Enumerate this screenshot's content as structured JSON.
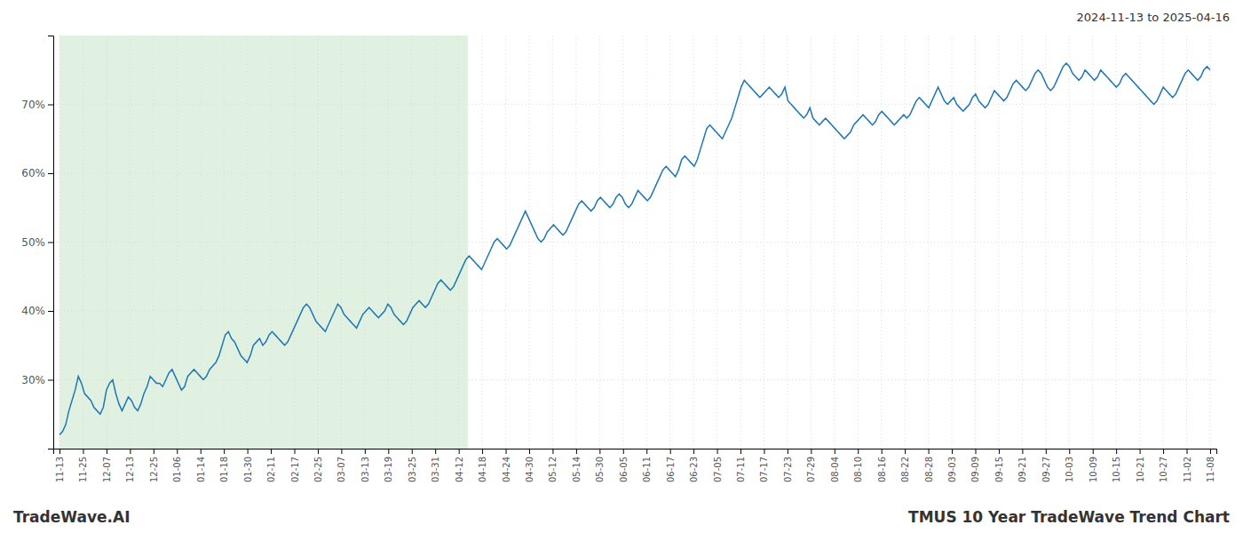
{
  "chart_data": {
    "type": "line",
    "title": "TMUS 10 Year TradeWave Trend Chart",
    "subtitle": "2024-11-13 to 2025-04-16",
    "annotations": [
      "TradeWave.AI"
    ],
    "color": "#1f77b4",
    "grid": true,
    "xlim": [
      -2,
      370
    ],
    "xticks": [
      {
        "value": 0,
        "label": "11-13"
      },
      {
        "value": 7.510204,
        "label": "11-25"
      },
      {
        "value": 15.020408,
        "label": "12-07"
      },
      {
        "value": 22.530612,
        "label": "12-13"
      },
      {
        "value": 30.040816,
        "label": "12-25"
      },
      {
        "value": 37.55102,
        "label": "01-06"
      },
      {
        "value": 45.061224,
        "label": "01-14"
      },
      {
        "value": 52.571429,
        "label": "01-18"
      },
      {
        "value": 60.081633,
        "label": "01-30"
      },
      {
        "value": 67.591837,
        "label": "02-11"
      },
      {
        "value": 75.102041,
        "label": "02-17"
      },
      {
        "value": 82.612245,
        "label": "02-25"
      },
      {
        "value": 90.122449,
        "label": "03-07"
      },
      {
        "value": 97.632653,
        "label": "03-13"
      },
      {
        "value": 105.142857,
        "label": "03-19"
      },
      {
        "value": 112.653061,
        "label": "03-25"
      },
      {
        "value": 120.163265,
        "label": "03-31"
      },
      {
        "value": 127.673469,
        "label": "04-12"
      },
      {
        "value": 135.183673,
        "label": "04-18"
      },
      {
        "value": 142.693878,
        "label": "04-24"
      },
      {
        "value": 150.204082,
        "label": "04-30"
      },
      {
        "value": 157.714286,
        "label": "05-12"
      },
      {
        "value": 165.22449,
        "label": "05-14"
      },
      {
        "value": 172.734694,
        "label": "05-30"
      },
      {
        "value": 180.244898,
        "label": "06-05"
      },
      {
        "value": 187.755102,
        "label": "06-11"
      },
      {
        "value": 195.265306,
        "label": "06-17"
      },
      {
        "value": 202.77551,
        "label": "06-23"
      },
      {
        "value": 210.285714,
        "label": "07-05"
      },
      {
        "value": 217.795918,
        "label": "07-11"
      },
      {
        "value": 225.306122,
        "label": "07-17"
      },
      {
        "value": 232.816327,
        "label": "07-23"
      },
      {
        "value": 240.326531,
        "label": "07-29"
      },
      {
        "value": 247.836735,
        "label": "08-04"
      },
      {
        "value": 255.346939,
        "label": "08-10"
      },
      {
        "value": 262.857143,
        "label": "08-16"
      },
      {
        "value": 270.367347,
        "label": "08-22"
      },
      {
        "value": 277.877551,
        "label": "08-28"
      },
      {
        "value": 285.387755,
        "label": "09-03"
      },
      {
        "value": 292.897959,
        "label": "09-09"
      },
      {
        "value": 300.408163,
        "label": "09-15"
      },
      {
        "value": 307.918367,
        "label": "09-21"
      },
      {
        "value": 315.428571,
        "label": "09-27"
      },
      {
        "value": 322.938776,
        "label": "10-03"
      },
      {
        "value": 330.44898,
        "label": "10-09"
      },
      {
        "value": 337.959184,
        "label": "10-15"
      },
      {
        "value": 345.469388,
        "label": "10-21"
      },
      {
        "value": 352.979592,
        "label": "10-27"
      },
      {
        "value": 360.489796,
        "label": "11-02"
      },
      {
        "value": 368,
        "label": "11-08"
      }
    ],
    "ylim": [
      20,
      80
    ],
    "yticks": [
      {
        "value": 30,
        "label": "30%"
      },
      {
        "value": 40,
        "label": "40%"
      },
      {
        "value": 50,
        "label": "50%"
      },
      {
        "value": 60,
        "label": "60%"
      },
      {
        "value": 70,
        "label": "70%"
      }
    ],
    "shaded_region": {
      "x": [
        0,
        130.64
      ],
      "color": "#c8e6c8"
    },
    "values": [
      22.0,
      22.5,
      23.5,
      25.5,
      27.0,
      28.5,
      30.5,
      29.5,
      28.0,
      27.5,
      27.0,
      26.0,
      25.5,
      25.0,
      26.0,
      28.5,
      29.5,
      30.0,
      28.0,
      26.5,
      25.5,
      26.5,
      27.5,
      27.0,
      26.0,
      25.5,
      26.5,
      28.0,
      29.0,
      30.5,
      30.0,
      29.5,
      29.5,
      29.0,
      30.0,
      31.0,
      31.5,
      30.5,
      29.5,
      28.5,
      29.0,
      30.5,
      31.0,
      31.5,
      31.0,
      30.5,
      30.0,
      30.5,
      31.5,
      32.0,
      32.5,
      33.5,
      35.0,
      36.5,
      37.0,
      36.0,
      35.5,
      34.5,
      33.5,
      33.0,
      32.5,
      33.5,
      35.0,
      35.5,
      36.0,
      35.0,
      35.5,
      36.5,
      37.0,
      36.5,
      36.0,
      35.5,
      35.0,
      35.5,
      36.5,
      37.5,
      38.5,
      39.5,
      40.5,
      41.0,
      40.5,
      39.5,
      38.5,
      38.0,
      37.5,
      37.0,
      38.0,
      39.0,
      40.0,
      41.0,
      40.5,
      39.5,
      39.0,
      38.5,
      38.0,
      37.5,
      38.5,
      39.5,
      40.0,
      40.5,
      40.0,
      39.5,
      39.0,
      39.5,
      40.0,
      41.0,
      40.5,
      39.5,
      39.0,
      38.5,
      38.0,
      38.5,
      39.5,
      40.5,
      41.0,
      41.5,
      41.0,
      40.5,
      41.0,
      42.0,
      43.0,
      44.0,
      44.5,
      44.0,
      43.5,
      43.0,
      43.5,
      44.5,
      45.5,
      46.5,
      47.5,
      48.0,
      47.5,
      47.0,
      46.5,
      46.0,
      47.0,
      48.0,
      49.0,
      50.0,
      50.5,
      50.0,
      49.5,
      49.0,
      49.5,
      50.5,
      51.5,
      52.5,
      53.5,
      54.5,
      53.5,
      52.5,
      51.5,
      50.5,
      50.0,
      50.5,
      51.5,
      52.0,
      52.5,
      52.0,
      51.5,
      51.0,
      51.5,
      52.5,
      53.5,
      54.5,
      55.5,
      56.0,
      55.5,
      55.0,
      54.5,
      55.0,
      56.0,
      56.5,
      56.0,
      55.5,
      55.0,
      55.5,
      56.5,
      57.0,
      56.5,
      55.5,
      55.0,
      55.5,
      56.5,
      57.5,
      57.0,
      56.5,
      56.0,
      56.5,
      57.5,
      58.5,
      59.5,
      60.5,
      61.0,
      60.5,
      60.0,
      59.5,
      60.5,
      62.0,
      62.5,
      62.0,
      61.5,
      61.0,
      62.0,
      63.5,
      65.0,
      66.5,
      67.0,
      66.5,
      66.0,
      65.5,
      65.0,
      66.0,
      67.0,
      68.0,
      69.5,
      71.0,
      72.5,
      73.5,
      73.0,
      72.5,
      72.0,
      71.5,
      71.0,
      71.5,
      72.0,
      72.5,
      72.0,
      71.5,
      71.0,
      71.5,
      72.5,
      70.5,
      70.0,
      69.5,
      69.0,
      68.5,
      68.0,
      68.5,
      69.5,
      68.0,
      67.5,
      67.0,
      67.5,
      68.0,
      67.5,
      67.0,
      66.5,
      66.0,
      65.5,
      65.0,
      65.5,
      66.0,
      67.0,
      67.5,
      68.0,
      68.5,
      68.0,
      67.5,
      67.0,
      67.5,
      68.5,
      69.0,
      68.5,
      68.0,
      67.5,
      67.0,
      67.5,
      68.0,
      68.5,
      68.0,
      68.5,
      69.5,
      70.5,
      71.0,
      70.5,
      70.0,
      69.5,
      70.5,
      71.5,
      72.5,
      71.5,
      70.5,
      70.0,
      70.5,
      71.0,
      70.0,
      69.5,
      69.0,
      69.5,
      70.0,
      71.0,
      71.5,
      70.5,
      70.0,
      69.5,
      70.0,
      71.0,
      72.0,
      71.5,
      71.0,
      70.5,
      71.0,
      72.0,
      73.0,
      73.5,
      73.0,
      72.5,
      72.0,
      72.5,
      73.5,
      74.5,
      75.0,
      74.5,
      73.5,
      72.5,
      72.0,
      72.5,
      73.5,
      74.5,
      75.5,
      76.0,
      75.5,
      74.5,
      74.0,
      73.5,
      74.0,
      75.0,
      74.5,
      74.0,
      73.5,
      74.0,
      75.0,
      74.5,
      74.0,
      73.5,
      73.0,
      72.5,
      73.0,
      74.0,
      74.5,
      74.0,
      73.5,
      73.0,
      72.5,
      72.0,
      71.5,
      71.0,
      70.5,
      70.0,
      70.5,
      71.5,
      72.5,
      72.0,
      71.5,
      71.0,
      71.5,
      72.5,
      73.5,
      74.5,
      75.0,
      74.5,
      74.0,
      73.5,
      74.0,
      75.0,
      75.5,
      75.0
    ]
  }
}
